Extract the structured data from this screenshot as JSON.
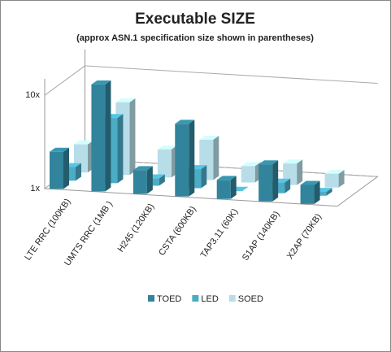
{
  "chart_data": {
    "type": "bar3d",
    "title": "Executable SIZE",
    "subtitle": "(approx ASN.1 specification size  shown in parentheses)",
    "categories": [
      "LTE RRC (100KB)",
      "UMTS RRC (1MB )",
      "H245 (120KB)",
      "CSTA (600KB)",
      "TAP3.11 (60K)",
      "S1AP (140KB)",
      "X2AP (70KB)"
    ],
    "series": [
      {
        "name": "TOED",
        "color": "#31849b",
        "values": [
          2.5,
          14,
          1.8,
          6,
          1.6,
          2.5,
          1.6
        ]
      },
      {
        "name": "LED",
        "color": "#4bacc6",
        "values": [
          1.4,
          5,
          1.2,
          1.6,
          1.0,
          1.3,
          1.1
        ]
      },
      {
        "name": "SOED",
        "color": "#b7dde8",
        "values": [
          2,
          6,
          2,
          2.7,
          1.5,
          1.7,
          1.4
        ]
      }
    ],
    "log_scale": true,
    "ylim": [
      1,
      15
    ],
    "yticks": [
      {
        "value": 1,
        "label": "1x"
      },
      {
        "value": 10,
        "label": "10x"
      }
    ],
    "grid": true,
    "legend": "bottom"
  }
}
